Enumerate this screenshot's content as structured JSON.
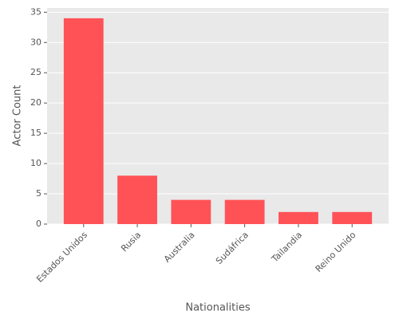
{
  "chart_data": {
    "type": "bar",
    "x_label": "Nationalities",
    "y_label": "Actor Count",
    "categories": [
      "Estados Unidos",
      "Rusia",
      "Australia",
      "Sudáfrica",
      "Tailandia",
      "Reino Unido"
    ],
    "values": [
      34,
      8,
      4,
      4,
      2,
      2
    ],
    "color": "#ff5257",
    "ylim": [
      0,
      35.7
    ],
    "yticks": [
      0,
      5,
      10,
      15,
      20,
      25,
      30,
      35
    ],
    "grid": true
  }
}
